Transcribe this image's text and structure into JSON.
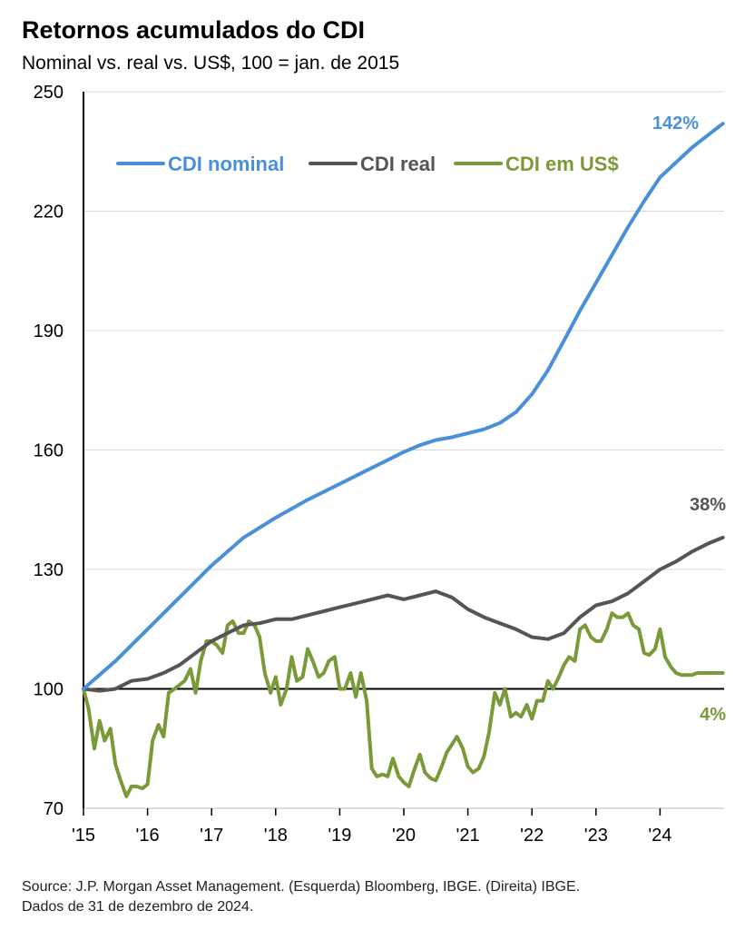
{
  "chart_data": {
    "type": "line",
    "title": "Retornos acumulados do CDI",
    "subtitle": "Nominal vs. real vs. US$, 100 = jan. de 2015",
    "xlabel": "",
    "ylabel": "",
    "ylim": [
      70,
      250
    ],
    "xlim": [
      2015,
      2025
    ],
    "y_ticks": [
      "250",
      "220",
      "190",
      "160",
      "130",
      "100",
      "70"
    ],
    "y_tick_values": [
      250,
      220,
      190,
      160,
      130,
      100,
      70
    ],
    "x_ticks": [
      "'15",
      "'16",
      "'17",
      "'18",
      "'19",
      "'20",
      "'21",
      "'22",
      "'23",
      "'24"
    ],
    "x_tick_values": [
      2015,
      2016,
      2017,
      2018,
      2019,
      2020,
      2021,
      2022,
      2023,
      2024
    ],
    "baseline": 100,
    "grid": true,
    "series": [
      {
        "name": "CDI nominal",
        "color": "#4a90d9",
        "end_label": "142%",
        "x": [
          2015,
          2015.5,
          2016,
          2016.5,
          2017,
          2017.5,
          2018,
          2018.5,
          2019,
          2019.5,
          2020,
          2020.25,
          2020.5,
          2020.75,
          2021,
          2021.25,
          2021.5,
          2021.75,
          2022,
          2022.25,
          2022.5,
          2022.75,
          2023,
          2023.25,
          2023.5,
          2023.75,
          2024,
          2024.5,
          2024.98
        ],
        "values": [
          100,
          107,
          115,
          123,
          131,
          138,
          143,
          147.5,
          151.5,
          155.5,
          159.5,
          161.2,
          162.5,
          163.2,
          164.2,
          165.2,
          166.8,
          169.5,
          174,
          180,
          187.5,
          195,
          202,
          209,
          216,
          222.5,
          228.5,
          236,
          242
        ]
      },
      {
        "name": "CDI real",
        "color": "#555555",
        "end_label": "38%",
        "x": [
          2015,
          2015.25,
          2015.5,
          2015.75,
          2016,
          2016.25,
          2016.5,
          2016.75,
          2017,
          2017.25,
          2017.5,
          2017.75,
          2018,
          2018.25,
          2018.5,
          2018.75,
          2019,
          2019.25,
          2019.5,
          2019.75,
          2020,
          2020.25,
          2020.5,
          2020.75,
          2021,
          2021.25,
          2021.5,
          2021.75,
          2022,
          2022.25,
          2022.5,
          2022.75,
          2023,
          2023.25,
          2023.5,
          2023.75,
          2024,
          2024.25,
          2024.5,
          2024.75,
          2024.98
        ],
        "values": [
          100,
          99.5,
          100,
          102,
          102.5,
          104,
          106,
          109,
          112,
          114,
          116,
          116.5,
          117.5,
          117.5,
          118.5,
          119.5,
          120.5,
          121.5,
          122.5,
          123.5,
          122.5,
          123.5,
          124.5,
          123,
          120,
          118,
          116.5,
          115,
          113,
          112.5,
          114,
          118,
          121,
          122,
          124,
          127,
          130,
          132,
          134.5,
          136.5,
          138
        ]
      },
      {
        "name": "CDI em US$",
        "color": "#7a9a3a",
        "end_label": "4%",
        "x": [
          2015,
          2015.08,
          2015.17,
          2015.25,
          2015.33,
          2015.42,
          2015.5,
          2015.58,
          2015.67,
          2015.75,
          2015.83,
          2015.92,
          2016,
          2016.08,
          2016.17,
          2016.25,
          2016.33,
          2016.42,
          2016.5,
          2016.58,
          2016.67,
          2016.75,
          2016.83,
          2016.92,
          2017,
          2017.08,
          2017.17,
          2017.25,
          2017.33,
          2017.42,
          2017.5,
          2017.58,
          2017.67,
          2017.75,
          2017.83,
          2017.92,
          2018,
          2018.08,
          2018.17,
          2018.25,
          2018.33,
          2018.42,
          2018.5,
          2018.58,
          2018.67,
          2018.75,
          2018.83,
          2018.92,
          2019,
          2019.08,
          2019.17,
          2019.25,
          2019.33,
          2019.42,
          2019.5,
          2019.58,
          2019.67,
          2019.75,
          2019.83,
          2019.92,
          2020,
          2020.08,
          2020.17,
          2020.25,
          2020.33,
          2020.42,
          2020.5,
          2020.58,
          2020.67,
          2020.75,
          2020.83,
          2020.92,
          2021,
          2021.08,
          2021.17,
          2021.25,
          2021.33,
          2021.42,
          2021.5,
          2021.58,
          2021.67,
          2021.75,
          2021.83,
          2021.92,
          2022,
          2022.08,
          2022.17,
          2022.25,
          2022.33,
          2022.42,
          2022.5,
          2022.58,
          2022.67,
          2022.75,
          2022.83,
          2022.92,
          2023,
          2023.08,
          2023.17,
          2023.25,
          2023.33,
          2023.42,
          2023.5,
          2023.58,
          2023.67,
          2023.75,
          2023.83,
          2023.92,
          2024,
          2024.08,
          2024.17,
          2024.25,
          2024.33,
          2024.42,
          2024.5,
          2024.58,
          2024.67,
          2024.75,
          2024.83,
          2024.92,
          2024.98
        ],
        "values": [
          100,
          95,
          85,
          92,
          87,
          90,
          81,
          77,
          73,
          75.5,
          75.5,
          75,
          76,
          87,
          91,
          88,
          99,
          100,
          101,
          102,
          105,
          99,
          107,
          112,
          112,
          111,
          109,
          116,
          117,
          114,
          114,
          117,
          116,
          113,
          104,
          99,
          103,
          96,
          100,
          108,
          102,
          103,
          110,
          107,
          103,
          104,
          107,
          108,
          100,
          100,
          104,
          98,
          104,
          97,
          80,
          78,
          78.5,
          78,
          82.5,
          78,
          76.5,
          75.5,
          80,
          83.5,
          79,
          77.5,
          77,
          80,
          84,
          86,
          88,
          85,
          80.5,
          79,
          80,
          83,
          89,
          99,
          96,
          100,
          93,
          94,
          93,
          96,
          92.5,
          97,
          97,
          102,
          100,
          103,
          106,
          108,
          107,
          115,
          116,
          113,
          112,
          112,
          115,
          119,
          118,
          118,
          119,
          116,
          115,
          109,
          108.5,
          110,
          115,
          108,
          105.5,
          104,
          103.5,
          103.5,
          103.5,
          104,
          104,
          104,
          104,
          104,
          104
        ]
      }
    ]
  },
  "source": {
    "line1": "Source: J.P. Morgan Asset Management. (Esquerda) Bloomberg, IBGE. (Direita) IBGE.",
    "line2": "Dados de 31 de dezembro de 2024."
  }
}
